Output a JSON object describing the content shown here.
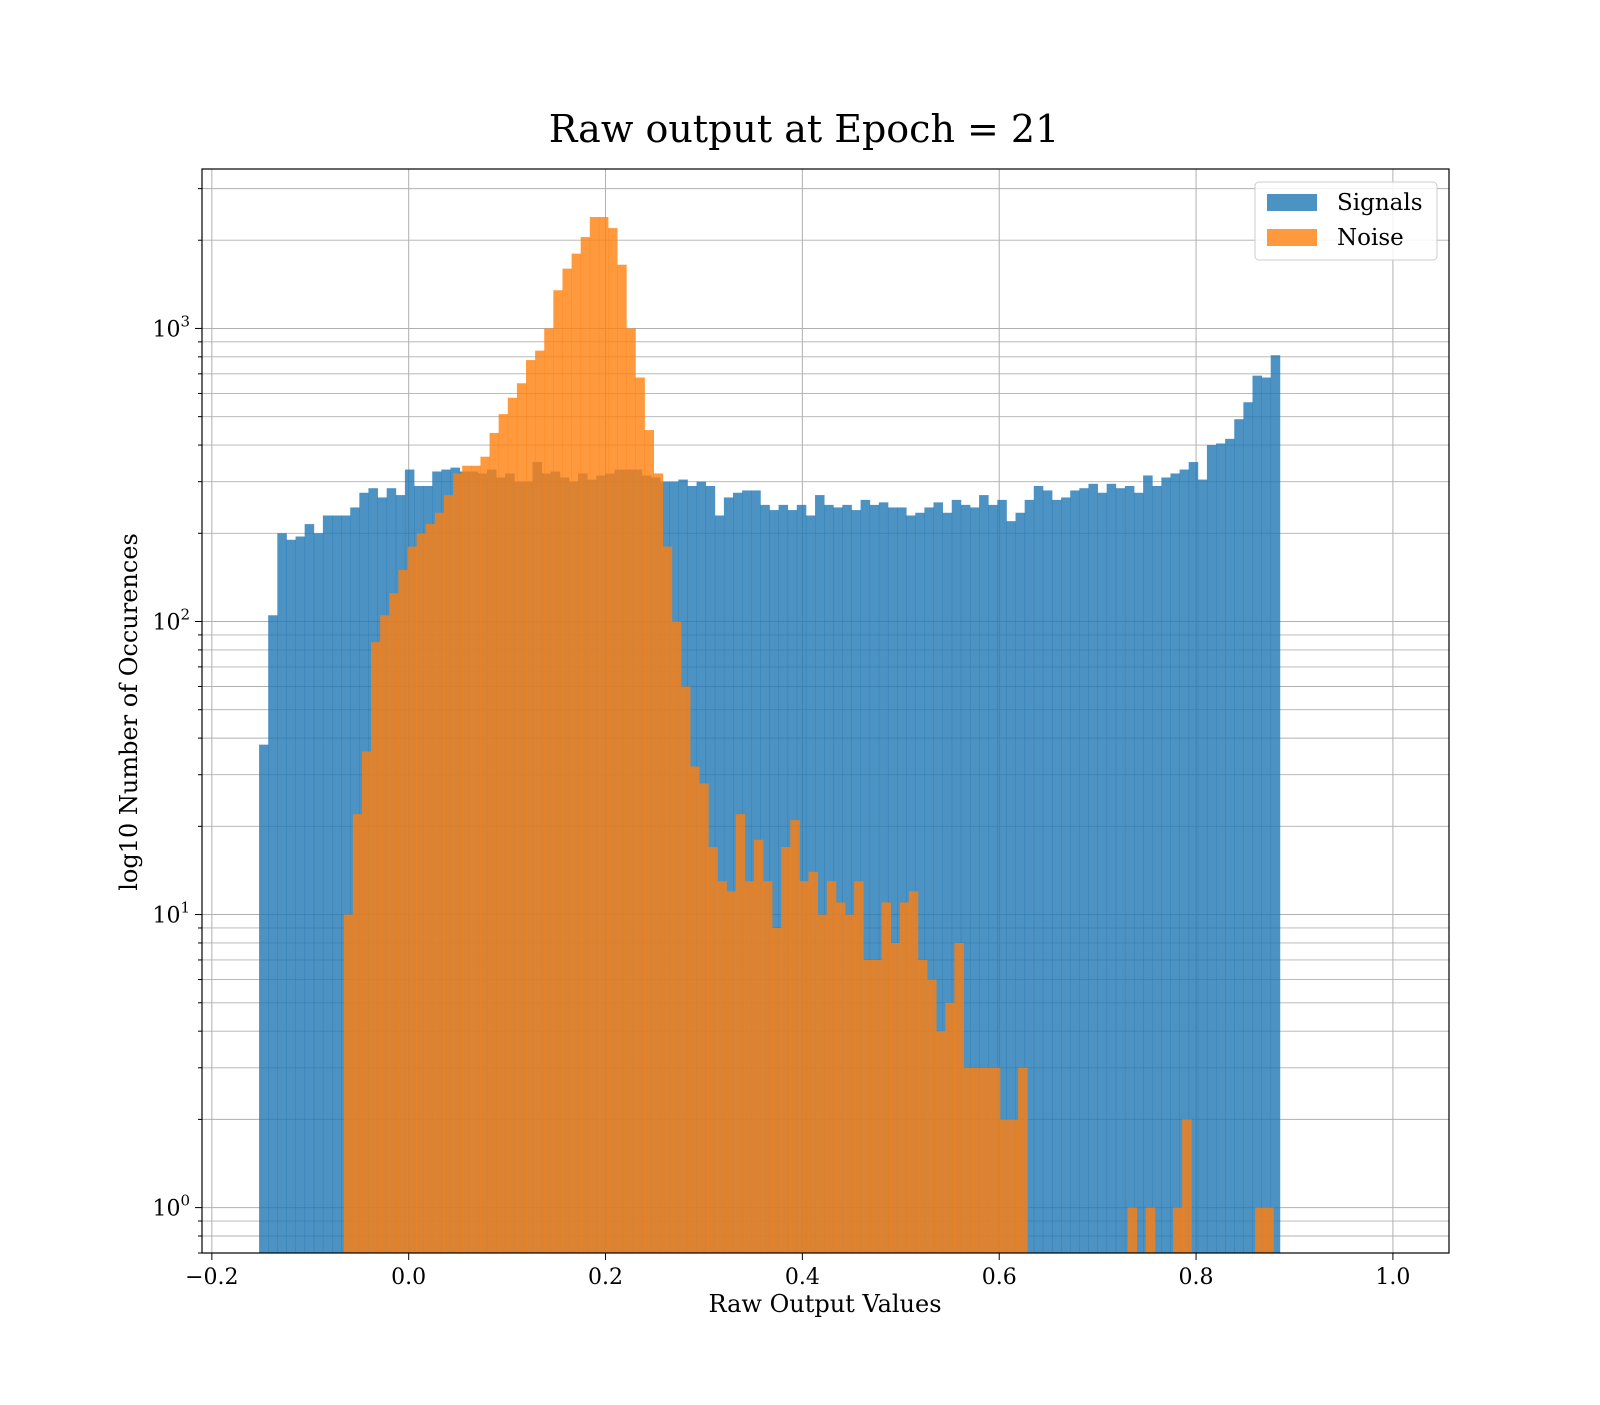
{
  "chart_data": {
    "type": "bar",
    "title": "Raw output at Epoch = 21",
    "xlabel": "Raw Output Values",
    "ylabel": "log10 Number of Occurences",
    "xlim": [
      -0.21,
      1.057
    ],
    "ylim": [
      0.7,
      3500
    ],
    "y_scale": "log",
    "grid": true,
    "legend_position": "top-right",
    "x_ticks": [
      {
        "value": -0.2,
        "label": "−0.2"
      },
      {
        "value": 0.0,
        "label": "0.0"
      },
      {
        "value": 0.2,
        "label": "0.2"
      },
      {
        "value": 0.4,
        "label": "0.4"
      },
      {
        "value": 0.6,
        "label": "0.6"
      },
      {
        "value": 0.8,
        "label": "0.8"
      },
      {
        "value": 1.0,
        "label": "1.0"
      }
    ],
    "y_ticks": [
      {
        "value": 1,
        "base": "10",
        "exp": "0"
      },
      {
        "value": 10,
        "base": "10",
        "exp": "1"
      },
      {
        "value": 100,
        "base": "10",
        "exp": "2"
      },
      {
        "value": 1000,
        "base": "10",
        "exp": "3"
      }
    ],
    "series": [
      {
        "name": "Signals",
        "color": "#1f77b4",
        "opacity": 0.8,
        "bin_start": -0.152,
        "bin_width": 0.00926,
        "values": [
          38,
          105,
          200,
          190,
          195,
          215,
          200,
          230,
          230,
          230,
          245,
          275,
          285,
          265,
          285,
          270,
          330,
          290,
          290,
          325,
          330,
          335,
          325,
          325,
          320,
          330,
          310,
          320,
          300,
          300,
          350,
          320,
          325,
          310,
          300,
          320,
          305,
          315,
          320,
          330,
          330,
          330,
          315,
          310,
          300,
          300,
          305,
          290,
          300,
          290,
          230,
          265,
          275,
          280,
          280,
          250,
          240,
          250,
          240,
          250,
          230,
          270,
          250,
          245,
          250,
          240,
          260,
          250,
          255,
          245,
          245,
          230,
          235,
          245,
          255,
          235,
          260,
          250,
          245,
          270,
          250,
          260,
          220,
          235,
          260,
          290,
          280,
          260,
          265,
          280,
          285,
          295,
          275,
          295,
          285,
          290,
          275,
          315,
          290,
          310,
          320,
          330,
          350,
          305,
          400,
          405,
          420,
          490,
          560,
          690,
          680,
          810
        ]
      },
      {
        "name": "Noise",
        "color": "#ff7f0e",
        "opacity": 0.8,
        "bin_start": -0.066,
        "bin_width": 0.00926,
        "values": [
          10,
          22,
          36,
          85,
          105,
          125,
          150,
          180,
          200,
          215,
          235,
          270,
          320,
          340,
          340,
          365,
          440,
          510,
          580,
          650,
          780,
          840,
          1000,
          1350,
          1600,
          1800,
          2050,
          2400,
          2400,
          2200,
          1650,
          1000,
          680,
          450,
          320,
          180,
          100,
          60,
          32,
          28,
          17,
          13,
          12,
          22,
          13,
          18,
          13,
          9,
          17,
          21,
          13,
          14,
          10,
          13,
          11,
          10,
          13,
          7,
          7,
          11,
          8,
          11,
          12,
          7,
          6,
          4,
          5,
          8,
          3,
          3,
          3,
          3,
          2,
          2,
          3,
          0,
          0,
          0,
          0,
          0,
          0,
          0,
          0,
          0,
          0,
          0,
          1,
          0,
          1,
          0,
          0,
          1,
          2,
          0,
          0,
          0,
          0,
          0,
          0,
          0,
          1,
          1
        ]
      }
    ]
  }
}
